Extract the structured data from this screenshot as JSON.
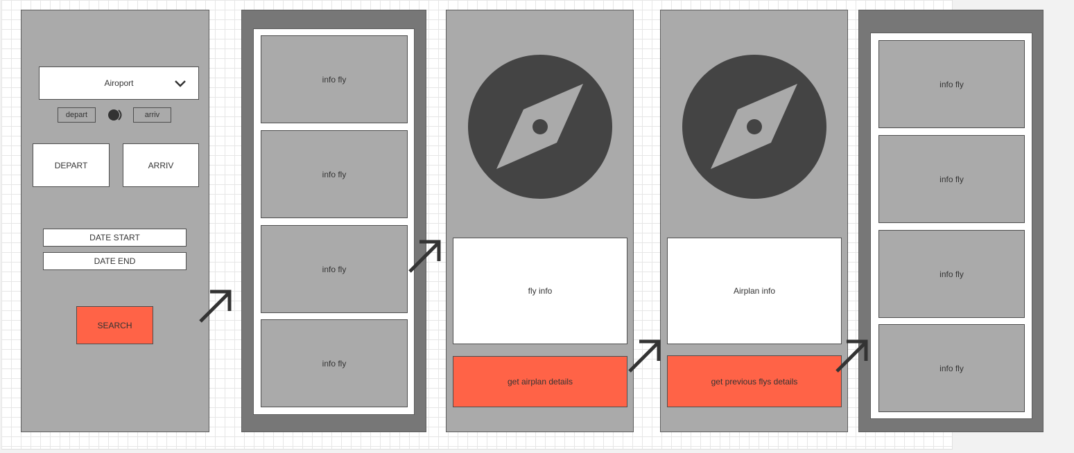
{
  "screen1": {
    "airport_select": "Airoport",
    "toggle": {
      "left_label": "depart",
      "right_label": "arriv"
    },
    "depart_box": "DEPART",
    "arriv_box": "ARRIV",
    "date_start": "DATE START",
    "date_end": "DATE END",
    "search_button": "SEARCH"
  },
  "screen2": {
    "cards": [
      "info fly",
      "info fly",
      "info fly",
      "info fly"
    ]
  },
  "screen3": {
    "info_box": "fly info",
    "action_button": "get airplan details"
  },
  "screen4": {
    "info_box": "Airplan info",
    "action_button": "get previous flys details"
  },
  "screen5": {
    "cards": [
      "info fly",
      "info fly",
      "info fly",
      "info fly"
    ]
  },
  "colors": {
    "accent": "#ff6347",
    "screen_light": "#aaaaaa",
    "screen_dark": "#777777",
    "icon": "#444444"
  },
  "icons": [
    "chevron-down-icon",
    "toggle-icon",
    "flow-arrow-icon",
    "compass-icon"
  ]
}
